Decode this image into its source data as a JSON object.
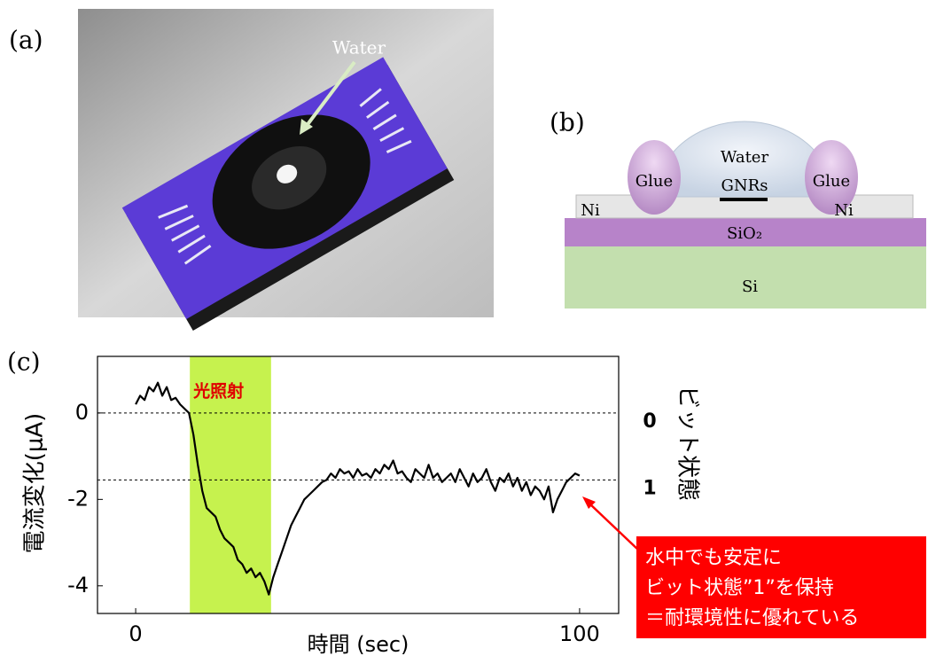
{
  "panel_a": {
    "label": "(a)",
    "water_label": "Water"
  },
  "panel_b": {
    "label": "(b)",
    "water": "Water",
    "gnrs": "GNRs",
    "glue_left": "Glue",
    "glue_right": "Glue",
    "ni_left": "Ni",
    "ni_right": "Ni",
    "sio2": "SiO₂",
    "si": "Si"
  },
  "chart_data": {
    "type": "line",
    "panel_label": "(c)",
    "x_label": "時間 (sec)",
    "y_label": "電流変化(μA)",
    "y2_label": "ビット状態",
    "x": [
      0,
      1,
      2,
      3,
      4,
      5,
      6,
      7,
      8,
      9,
      10,
      11,
      12,
      13,
      14,
      15,
      16,
      17,
      18,
      19,
      20,
      21,
      22,
      23,
      24,
      25,
      26,
      27,
      28,
      29,
      30,
      31,
      32,
      33,
      34,
      35,
      36,
      37,
      38,
      39,
      40,
      41,
      42,
      43,
      44,
      45,
      46,
      47,
      48,
      49,
      50,
      51,
      52,
      53,
      54,
      55,
      56,
      57,
      58,
      59,
      60,
      61,
      62,
      63,
      64,
      65,
      66,
      67,
      68,
      69,
      70,
      71,
      72,
      73,
      74,
      75,
      76,
      77,
      78,
      79,
      80,
      81,
      82,
      83,
      84,
      85,
      86,
      87,
      88,
      89,
      90,
      91,
      92,
      93,
      94,
      95,
      96,
      97,
      98,
      99,
      100
    ],
    "values": [
      0.2,
      0.4,
      0.3,
      0.6,
      0.5,
      0.7,
      0.4,
      0.6,
      0.3,
      0.35,
      0.2,
      0.1,
      0,
      -0.5,
      -1.2,
      -1.8,
      -2.2,
      -2.3,
      -2.4,
      -2.7,
      -2.9,
      -3.0,
      -3.1,
      -3.4,
      -3.5,
      -3.7,
      -3.6,
      -3.8,
      -3.7,
      -3.9,
      -4.2,
      -3.8,
      -3.5,
      -3.2,
      -2.9,
      -2.6,
      -2.4,
      -2.2,
      -2.0,
      -1.9,
      -1.8,
      -1.7,
      -1.6,
      -1.55,
      -1.4,
      -1.5,
      -1.3,
      -1.4,
      -1.35,
      -1.5,
      -1.3,
      -1.45,
      -1.4,
      -1.5,
      -1.3,
      -1.4,
      -1.2,
      -1.3,
      -1.1,
      -1.4,
      -1.35,
      -1.5,
      -1.6,
      -1.3,
      -1.4,
      -1.5,
      -1.2,
      -1.5,
      -1.4,
      -1.6,
      -1.5,
      -1.4,
      -1.6,
      -1.3,
      -1.5,
      -1.7,
      -1.4,
      -1.6,
      -1.5,
      -1.3,
      -1.6,
      -1.8,
      -1.5,
      -1.6,
      -1.4,
      -1.7,
      -1.5,
      -1.8,
      -1.6,
      -1.9,
      -1.7,
      -1.8,
      -2.0,
      -1.7,
      -2.3,
      -2.0,
      -1.8,
      -1.6,
      -1.5,
      -1.4,
      -1.45
    ],
    "color": "#000000",
    "xlim": [
      -8.6,
      108.8
    ],
    "ylim": [
      -4.64,
      1.31
    ],
    "xticks": [
      0,
      100
    ],
    "yticks": [
      0,
      -2,
      -4
    ],
    "ref_lines": [
      {
        "value": 0,
        "label": "0"
      },
      {
        "value": -1.55,
        "label": "1"
      }
    ],
    "shade": {
      "range": [
        12.2,
        30.5
      ],
      "label": "光照射",
      "color": "#c6f24e"
    },
    "callout": [
      "水中でも安定に",
      "ビット状態”1”を保持",
      "＝耐環境性に優れている"
    ]
  }
}
